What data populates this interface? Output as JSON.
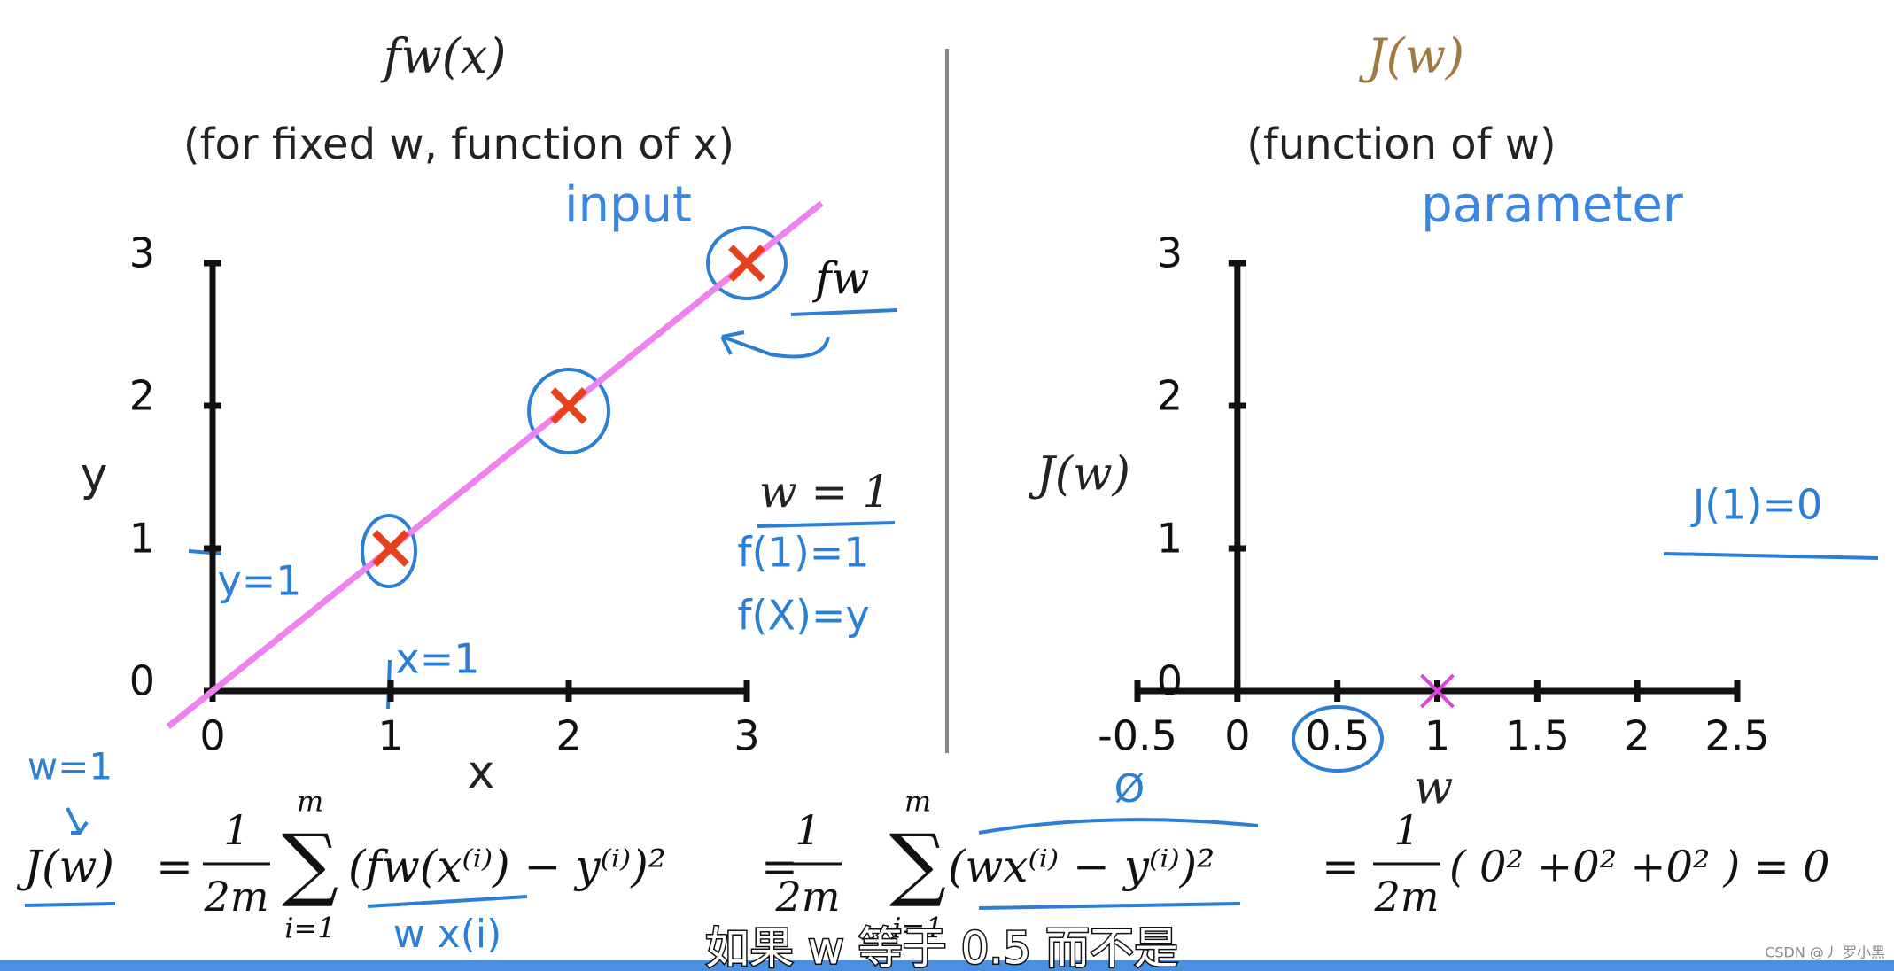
{
  "chart_data": [
    {
      "type": "scatter",
      "title": "fw(x)",
      "subtitle": "(for fixed w, function of x)",
      "annotation": "input",
      "xlabel": "x",
      "ylabel": "y",
      "xlim": [
        0,
        3
      ],
      "xticks": [
        0,
        1,
        2,
        3
      ],
      "ylim": [
        0,
        3
      ],
      "yticks": [
        0,
        1,
        2,
        3
      ],
      "series": [
        {
          "name": "fw",
          "color": "#ee82ee",
          "style": "line",
          "x": [
            -0.25,
            3.42
          ],
          "values": [
            -0.25,
            3.42
          ]
        },
        {
          "color": "#e8401c",
          "style": "marker",
          "x": [
            1,
            2,
            3
          ],
          "values": [
            1,
            2,
            3
          ]
        }
      ],
      "notes": [
        "w = 1",
        "f(1)=1",
        "f(X)=y",
        "y=1",
        "x=1"
      ]
    },
    {
      "type": "scatter",
      "title": "J(w)",
      "subtitle": "(function of w)",
      "annotation": "parameter",
      "xlabel": "w",
      "ylabel": "J(w)",
      "xlim": [
        -0.5,
        2.5
      ],
      "xticks": [
        -0.5,
        0,
        0.5,
        1,
        1.5,
        2,
        2.5
      ],
      "ylim": [
        0,
        3
      ],
      "yticks": [
        0,
        1,
        2,
        3
      ],
      "series": [
        {
          "color": "#e040e0",
          "style": "marker",
          "x": [
            1
          ],
          "values": [
            0
          ]
        }
      ],
      "notes": [
        "J(1)=0"
      ]
    }
  ],
  "formula": {
    "note_w": "w=1",
    "lhs": "J(w)",
    "eq1": "=",
    "num1": "1",
    "den1": "2m",
    "sum": "∑",
    "top": "m",
    "bottom": "i=1",
    "expr1": "(fw(x⁽ⁱ⁾)  −  y⁽ⁱ⁾)²",
    "eq2": "=",
    "num2": "1",
    "den2": "2m",
    "expr2": "(wx⁽ⁱ⁾ −  y⁽ⁱ⁾)²",
    "eq3": "=",
    "num3": "1",
    "den3": "2m",
    "expr3": "( 0² +0² +0²  ) = 0",
    "note_wx": "w x(i)",
    "note_zero": "Ø"
  },
  "caption": "如果 w 等于 0.5 而不是",
  "watermark": "CSDN @丿 罗小黑"
}
